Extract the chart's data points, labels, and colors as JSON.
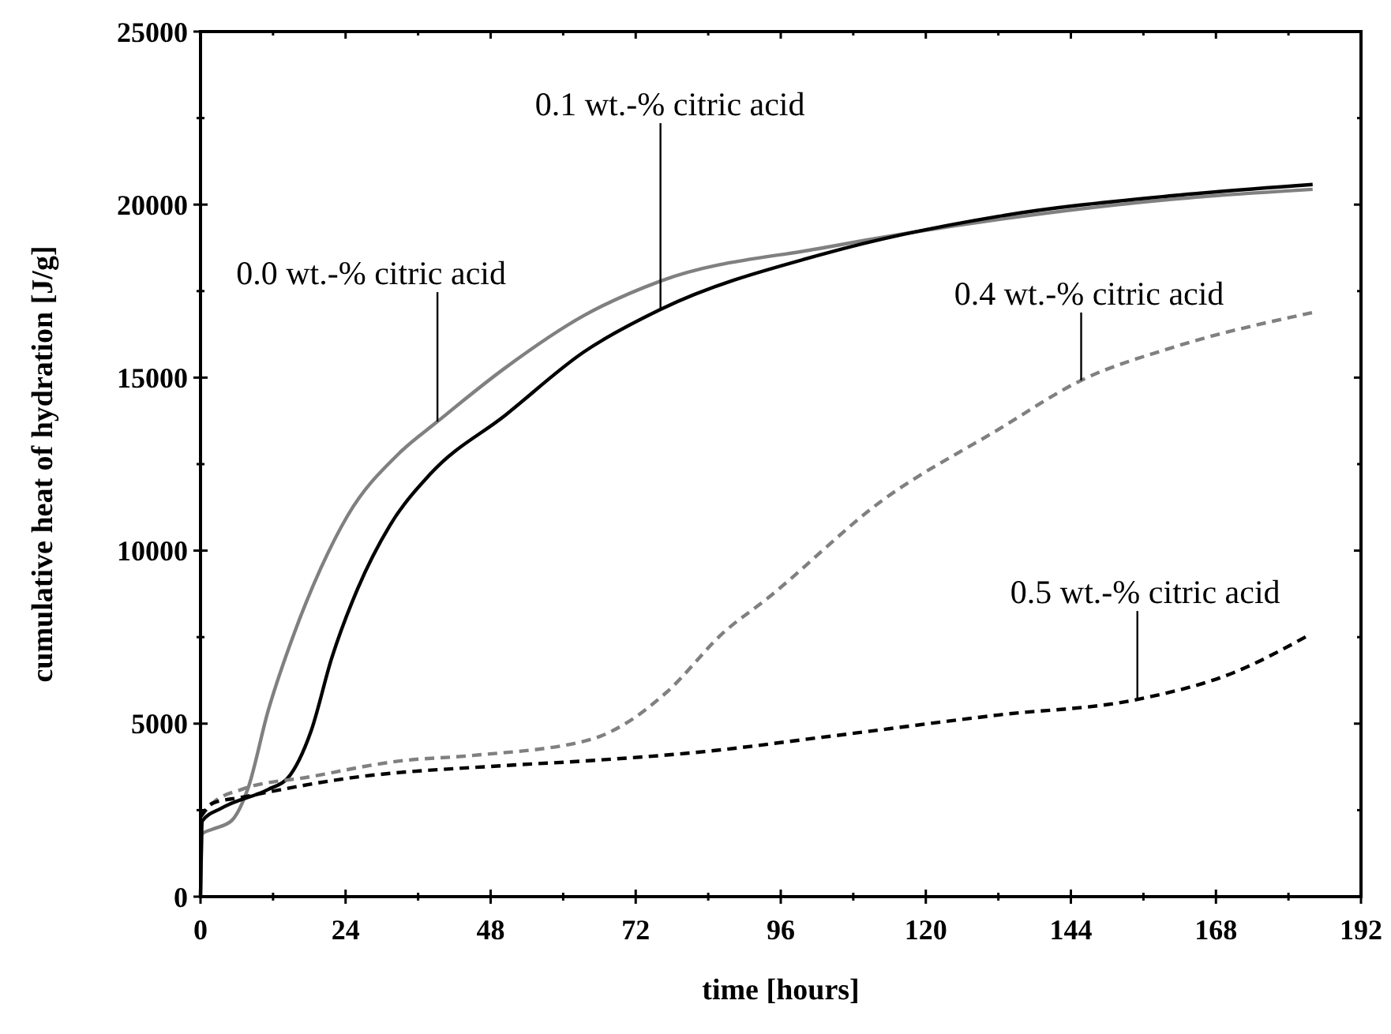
{
  "chart_data": {
    "type": "line",
    "xlabel": "time [hours]",
    "ylabel": "cumulative heat of hydration [J/g]",
    "xlim": [
      0,
      192
    ],
    "xticks": [
      0,
      {
        "value": 12,
        "label": null
      },
      24,
      {
        "value": 36,
        "label": null
      },
      48,
      {
        "value": 60,
        "label": null
      },
      72,
      {
        "value": 84,
        "label": null
      },
      96,
      {
        "value": 108,
        "label": null
      },
      120,
      {
        "value": 132,
        "label": null
      },
      144,
      {
        "value": 156,
        "label": null
      },
      168,
      {
        "value": 180,
        "label": null
      },
      192
    ],
    "ylim": [
      0,
      25000
    ],
    "yticks": [
      0,
      {
        "value": 2500,
        "label": null
      },
      5000,
      {
        "value": 7500,
        "label": null
      },
      10000,
      {
        "value": 12500,
        "label": null
      },
      15000,
      {
        "value": 17500,
        "label": null
      },
      20000,
      {
        "value": 22500,
        "label": null
      },
      25000
    ],
    "grid": false,
    "series": [
      {
        "color": "#808080",
        "line_style": "solid",
        "x": [
          0,
          0.3,
          2,
          5.1,
          7.8,
          11.2,
          15.6,
          19.9,
          24.3,
          32.9,
          39.2,
          50.4,
          63.4,
          76.1,
          103,
          132,
          161,
          184
        ],
        "values": [
          0,
          1820,
          1950,
          2190,
          3100,
          5380,
          7660,
          9490,
          11000,
          12820,
          13730,
          15280,
          16790,
          17790,
          18750,
          19570,
          20160,
          20440
        ]
      },
      {
        "color": "#000000",
        "line_style": "solid",
        "x": [
          0,
          0.3,
          3.4,
          11.2,
          14.4,
          18.3,
          21.7,
          26,
          31.3,
          38.1,
          50.4,
          63.4,
          76.1,
          103,
          132,
          161,
          184
        ],
        "values": [
          0,
          2190,
          2550,
          3100,
          3420,
          4790,
          6890,
          8900,
          10720,
          12230,
          13910,
          15740,
          16970,
          18570,
          19660,
          20260,
          20580
        ]
      },
      {
        "color": "#808080",
        "line_style": "dashed",
        "x": [
          0,
          2,
          6.8,
          18.3,
          32.9,
          45,
          64.5,
          70,
          77,
          86.7,
          93.5,
          112.8,
          132,
          145.7,
          161,
          184
        ],
        "values": [
          2300,
          2700,
          3100,
          3470,
          3920,
          4080,
          4540,
          4970,
          5890,
          7660,
          8580,
          11450,
          13500,
          14920,
          15880,
          16880
        ]
      },
      {
        "color": "#000000",
        "line_style": "dashed",
        "x": [
          0,
          2,
          6.8,
          24.3,
          50.4,
          63.4,
          83.8,
          103,
          132,
          155,
          171,
          183.5
        ],
        "values": [
          2300,
          2700,
          2870,
          3420,
          3790,
          3920,
          4200,
          4610,
          5250,
          5700,
          6480,
          7570
        ]
      }
    ],
    "annotations": [
      {
        "text": "0.0 wt.-% citric acid",
        "x": 39.2,
        "y": 13730
      },
      {
        "text": "0.1 wt.-% citric acid",
        "x": 76.1,
        "y": 16970
      },
      {
        "text": "0.4 wt.-% citric acid",
        "x": 145.7,
        "y": 14920
      },
      {
        "text": "0.5 wt.-% citric acid",
        "x": 155,
        "y": 5700
      }
    ]
  }
}
